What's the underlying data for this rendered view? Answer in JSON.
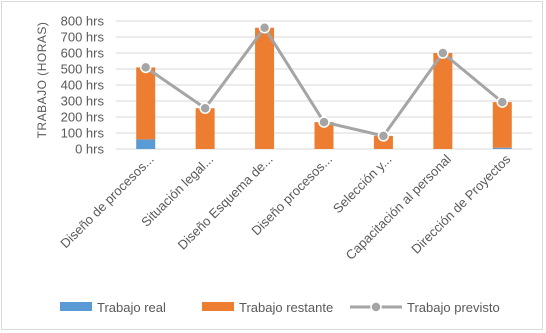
{
  "chart_data": {
    "type": "bar",
    "stacked": true,
    "ylabel": "TRABAJO (HORAS)",
    "ylim": [
      0,
      800
    ],
    "yticks": [
      "0 hrs",
      "100 hrs",
      "200 hrs",
      "300 hrs",
      "400 hrs",
      "500 hrs",
      "600 hrs",
      "700 hrs",
      "800 hrs"
    ],
    "categories": [
      "Diseño de procesos...",
      "Situación legal...",
      "Diseño Esquema de...",
      "Diseño procesos...",
      "Selección y...",
      "Capacitación al personal",
      "Dirección de Proyectos"
    ],
    "series": [
      {
        "name": "Trabajo real",
        "kind": "bar",
        "color": "#5b9bd5",
        "values": [
          60,
          0,
          0,
          0,
          0,
          0,
          8
        ]
      },
      {
        "name": "Trabajo restante",
        "kind": "bar",
        "color": "#ed7d31",
        "values": [
          450,
          255,
          758,
          168,
          82,
          600,
          285
        ]
      },
      {
        "name": "Trabajo previsto",
        "kind": "line",
        "color": "#a5a5a5",
        "values": [
          510,
          255,
          758,
          168,
          82,
          600,
          293
        ]
      }
    ],
    "grid": true,
    "legend_position": "bottom"
  }
}
